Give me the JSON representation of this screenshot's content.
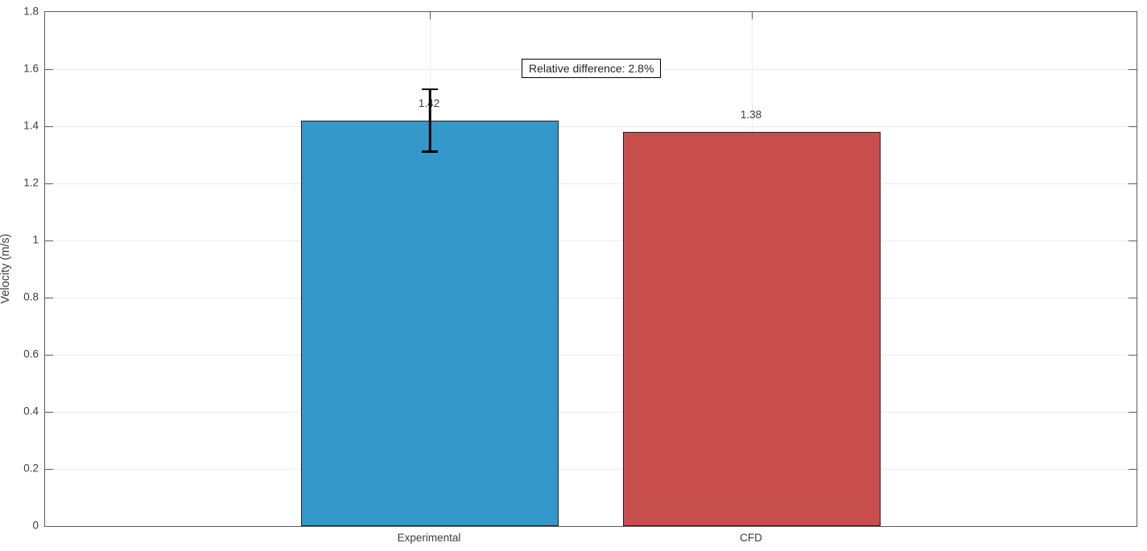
{
  "figure": {
    "background_color": "#ffffff",
    "text_color": "#3c3c3c"
  },
  "chart_data": {
    "type": "bar",
    "title": "",
    "xlabel": "",
    "ylabel": "Velocity (m/s)",
    "categories": [
      "Experimental",
      "CFD"
    ],
    "values": [
      1.42,
      1.38
    ],
    "value_labels": [
      "1.42",
      "1.38"
    ],
    "error_bars": [
      0.11,
      null
    ],
    "bar_colors": [
      "#3498cb",
      "#c84e4e"
    ],
    "bar_edge_color": "#222222",
    "errorbar_color": "#000000",
    "ylim": [
      0,
      1.8
    ],
    "yticks": [
      0,
      0.2,
      0.4,
      0.6,
      0.8,
      1,
      1.2,
      1.4,
      1.6,
      1.8
    ],
    "ytick_labels": [
      "0",
      "0.2",
      "0.4",
      "0.6",
      "0.8",
      "1",
      "1.2",
      "1.4",
      "1.6",
      "1.8"
    ],
    "grid": true,
    "grid_color": "#ebebeb",
    "axis_color": "#5a5a5a",
    "legend": null,
    "annotation": {
      "text": "Relative difference: 2.8%",
      "border_color": "#000000",
      "background": "#ffffff"
    }
  }
}
